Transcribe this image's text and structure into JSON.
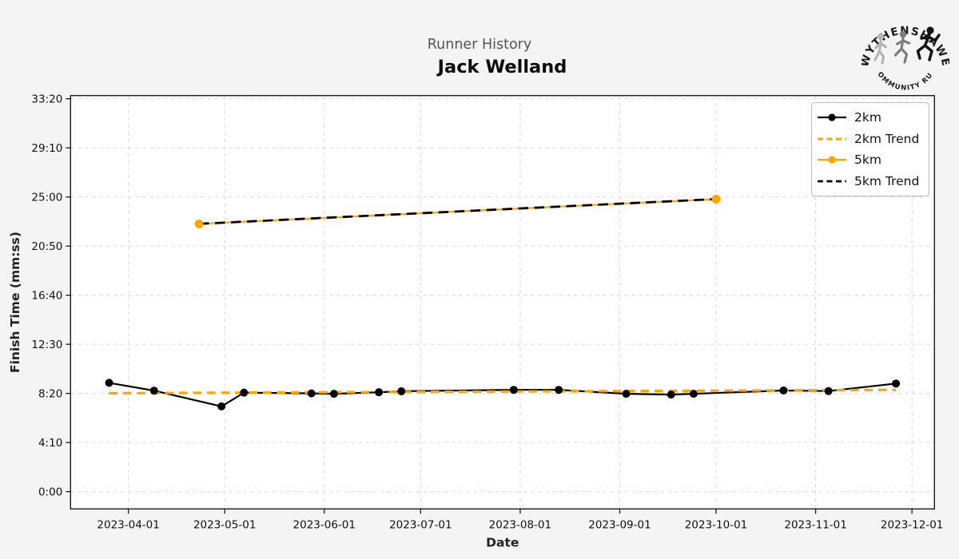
{
  "header": {
    "suptitle": "Runner History",
    "title": "Jack Welland"
  },
  "logo": {
    "arc_top": "WYTHENSHAWE",
    "arc_bottom": "COMMUNITY RUN"
  },
  "chart_data": {
    "type": "line",
    "suptitle": "Runner History",
    "title": "Jack Welland",
    "xlabel": "Date",
    "ylabel": "Finish Time (mm:ss)",
    "grid": true,
    "legend_position": "upper right",
    "x_domain": [
      "2023-03-14",
      "2023-12-08"
    ],
    "y_domain_seconds": [
      -88,
      2016
    ],
    "y_ticks": [
      {
        "seconds": 0,
        "label": "0:00"
      },
      {
        "seconds": 250,
        "label": "4:10"
      },
      {
        "seconds": 500,
        "label": "8:20"
      },
      {
        "seconds": 750,
        "label": "12:30"
      },
      {
        "seconds": 1000,
        "label": "16:40"
      },
      {
        "seconds": 1250,
        "label": "20:50"
      },
      {
        "seconds": 1500,
        "label": "25:00"
      },
      {
        "seconds": 1750,
        "label": "29:10"
      },
      {
        "seconds": 2000,
        "label": "33:20"
      }
    ],
    "x_ticks": [
      "2023-04-01",
      "2023-05-01",
      "2023-06-01",
      "2023-07-01",
      "2023-08-01",
      "2023-09-01",
      "2023-10-01",
      "2023-11-01",
      "2023-12-01"
    ],
    "series": [
      {
        "name": "2km",
        "color": "#000000",
        "line": "solid",
        "marker": true,
        "width": 2.2,
        "marker_r": 5,
        "points": [
          {
            "date": "2023-03-26",
            "time": "9:14",
            "seconds": 554
          },
          {
            "date": "2023-04-09",
            "time": "8:34",
            "seconds": 514
          },
          {
            "date": "2023-04-30",
            "time": "7:14",
            "seconds": 434
          },
          {
            "date": "2023-05-07",
            "time": "8:24",
            "seconds": 504
          },
          {
            "date": "2023-05-28",
            "time": "8:20",
            "seconds": 500
          },
          {
            "date": "2023-06-04",
            "time": "8:18",
            "seconds": 498
          },
          {
            "date": "2023-06-18",
            "time": "8:26",
            "seconds": 506
          },
          {
            "date": "2023-06-25",
            "time": "8:31",
            "seconds": 511
          },
          {
            "date": "2023-07-30",
            "time": "8:38",
            "seconds": 518
          },
          {
            "date": "2023-08-13",
            "time": "8:38",
            "seconds": 518
          },
          {
            "date": "2023-09-03",
            "time": "8:18",
            "seconds": 498
          },
          {
            "date": "2023-09-17",
            "time": "8:14",
            "seconds": 494
          },
          {
            "date": "2023-09-24",
            "time": "8:18",
            "seconds": 498
          },
          {
            "date": "2023-10-22",
            "time": "8:35",
            "seconds": 515
          },
          {
            "date": "2023-11-05",
            "time": "8:32",
            "seconds": 512
          },
          {
            "date": "2023-11-26",
            "time": "9:10",
            "seconds": 550
          }
        ]
      },
      {
        "name": "2km Trend",
        "color": "#FFA500",
        "line": "dashed",
        "marker": false,
        "width": 3.2,
        "dash": "10.5 7",
        "points": [
          {
            "date": "2023-03-26",
            "time": "8:21",
            "seconds": 501
          },
          {
            "date": "2023-11-26",
            "time": "8:38",
            "seconds": 518
          }
        ]
      },
      {
        "name": "5km",
        "color": "#FFA500",
        "line": "solid",
        "marker": true,
        "width": 2.2,
        "marker_r": 5.5,
        "points": [
          {
            "date": "2023-04-23",
            "time": "22:43",
            "seconds": 1363
          },
          {
            "date": "2023-10-01",
            "time": "24:49",
            "seconds": 1489
          }
        ]
      },
      {
        "name": "5km Trend",
        "color": "#000000",
        "line": "dashed",
        "marker": false,
        "width": 2.8,
        "dash": "12.5 7.5",
        "points": [
          {
            "date": "2023-04-23",
            "time": "22:43",
            "seconds": 1363
          },
          {
            "date": "2023-10-01",
            "time": "24:49",
            "seconds": 1489
          }
        ]
      }
    ]
  },
  "colors": {
    "figure_bg": "#f4f4f4",
    "plot_bg": "#ffffff",
    "grid": "#d9d9d9",
    "spine": "#1a1a1a",
    "tick_label": "#111111",
    "suptitle": "#555555",
    "orange": "#FFA500",
    "black": "#000000"
  }
}
